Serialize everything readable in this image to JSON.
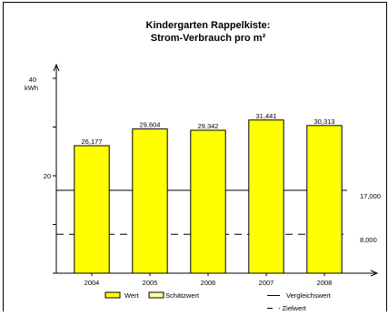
{
  "chart_data": {
    "type": "bar",
    "title": "Kindergarten Rappelkiste:",
    "subtitle": "Strom-Verbrauch pro m²",
    "ylabel_top": "40",
    "ylabel_unit": "kWh",
    "y_ticks": [
      20
    ],
    "ylim": [
      0,
      40
    ],
    "categories": [
      "2004",
      "2005",
      "2006",
      "2007",
      "2008"
    ],
    "values": [
      26.177,
      29.604,
      29.342,
      31.441,
      30.313
    ],
    "value_labels": [
      "26,177",
      "29,604",
      "29,342",
      "31,441",
      "30,313"
    ],
    "reference_lines": [
      {
        "value": 17.0,
        "label": "17,000",
        "style": "solid"
      },
      {
        "value": 8.0,
        "label": "8,000",
        "style": "dashed"
      }
    ],
    "legend": {
      "wert": "Wert",
      "schaetzwert": "Schätzwert",
      "vergleichswert": "Vergleichswert",
      "zielwert": "- Zielwert"
    },
    "colors": {
      "bar_fill": "#ffff00",
      "bar_stroke": "#000000",
      "estimate_fill": "#ffff99",
      "line": "#000000"
    }
  }
}
